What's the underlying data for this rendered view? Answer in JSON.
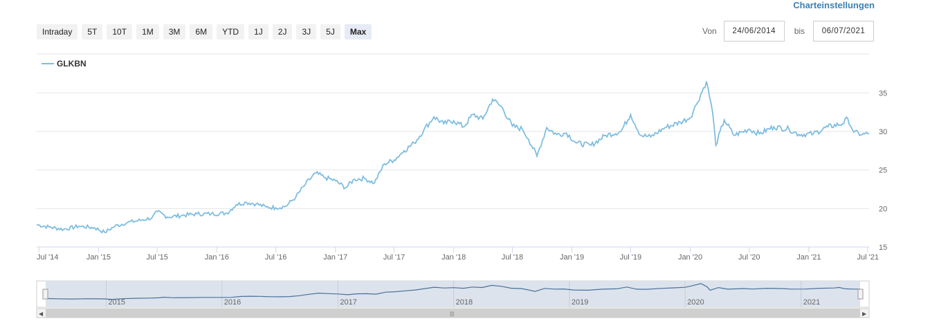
{
  "header": {
    "settings_label": "Charteinstellungen"
  },
  "range_buttons": [
    "Intraday",
    "5T",
    "10T",
    "1M",
    "3M",
    "6M",
    "YTD",
    "1J",
    "2J",
    "3J",
    "5J",
    "Max"
  ],
  "range_selected": "Max",
  "date_range": {
    "from_label": "Von",
    "from_value": "24/06/2014",
    "to_label": "bis",
    "to_value": "06/07/2021"
  },
  "colors": {
    "series": "#7ebde0",
    "navigator_line": "#4a6f9b",
    "navigator_bg": "#dce3ec",
    "grid": "#e6e6e6"
  },
  "chart_data": {
    "type": "line",
    "series": [
      {
        "name": "GLKBN",
        "points": [
          [
            "2014-06-24",
            17.9
          ],
          [
            "2014-08-01",
            17.6
          ],
          [
            "2014-09-15",
            17.3
          ],
          [
            "2014-11-01",
            17.7
          ],
          [
            "2014-12-20",
            17.5
          ],
          [
            "2015-01-20",
            16.9
          ],
          [
            "2015-02-20",
            17.7
          ],
          [
            "2015-04-01",
            18.2
          ],
          [
            "2015-05-15",
            18.5
          ],
          [
            "2015-06-15",
            18.8
          ],
          [
            "2015-07-01",
            19.6
          ],
          [
            "2015-08-01",
            18.9
          ],
          [
            "2015-09-15",
            19.1
          ],
          [
            "2015-11-01",
            19.3
          ],
          [
            "2015-12-15",
            19.3
          ],
          [
            "2016-02-01",
            19.4
          ],
          [
            "2016-03-01",
            20.5
          ],
          [
            "2016-04-01",
            20.8
          ],
          [
            "2016-05-01",
            20.6
          ],
          [
            "2016-06-01",
            20.2
          ],
          [
            "2016-07-01",
            20.1
          ],
          [
            "2016-08-01",
            20.3
          ],
          [
            "2016-09-01",
            21.5
          ],
          [
            "2016-10-01",
            23.2
          ],
          [
            "2016-11-01",
            24.6
          ],
          [
            "2016-12-01",
            24.0
          ],
          [
            "2017-01-01",
            23.6
          ],
          [
            "2017-02-01",
            22.7
          ],
          [
            "2017-03-01",
            23.8
          ],
          [
            "2017-04-01",
            23.9
          ],
          [
            "2017-05-01",
            23.3
          ],
          [
            "2017-06-01",
            25.8
          ],
          [
            "2017-07-01",
            26.3
          ],
          [
            "2017-08-01",
            27.5
          ],
          [
            "2017-09-01",
            28.5
          ],
          [
            "2017-10-01",
            30.2
          ],
          [
            "2017-11-01",
            31.9
          ],
          [
            "2017-12-01",
            31.0
          ],
          [
            "2018-01-01",
            31.4
          ],
          [
            "2018-02-01",
            30.6
          ],
          [
            "2018-03-01",
            32.2
          ],
          [
            "2018-04-01",
            31.6
          ],
          [
            "2018-05-01",
            34.2
          ],
          [
            "2018-06-01",
            33.0
          ],
          [
            "2018-07-01",
            30.7
          ],
          [
            "2018-08-01",
            30.3
          ],
          [
            "2018-08-20",
            29.0
          ],
          [
            "2018-09-15",
            26.8
          ],
          [
            "2018-10-15",
            30.5
          ],
          [
            "2018-11-15",
            29.6
          ],
          [
            "2018-12-15",
            29.8
          ],
          [
            "2019-01-15",
            28.5
          ],
          [
            "2019-03-01",
            28.2
          ],
          [
            "2019-04-15",
            29.5
          ],
          [
            "2019-06-01",
            30.0
          ],
          [
            "2019-07-01",
            32.2
          ],
          [
            "2019-08-01",
            29.5
          ],
          [
            "2019-09-01",
            29.3
          ],
          [
            "2019-10-15",
            30.5
          ],
          [
            "2019-12-01",
            31.2
          ],
          [
            "2020-01-01",
            31.8
          ],
          [
            "2020-01-20",
            33.5
          ],
          [
            "2020-02-20",
            36.5
          ],
          [
            "2020-03-10",
            32.5
          ],
          [
            "2020-03-20",
            28.2
          ],
          [
            "2020-04-15",
            31.5
          ],
          [
            "2020-05-15",
            29.5
          ],
          [
            "2020-07-01",
            30.3
          ],
          [
            "2020-08-01",
            29.7
          ],
          [
            "2020-09-15",
            30.6
          ],
          [
            "2020-11-01",
            30.3
          ],
          [
            "2020-12-01",
            29.6
          ],
          [
            "2021-01-15",
            29.7
          ],
          [
            "2021-03-01",
            30.6
          ],
          [
            "2021-04-15",
            31.0
          ],
          [
            "2021-05-01",
            31.7
          ],
          [
            "2021-05-20",
            29.9
          ],
          [
            "2021-06-15",
            29.6
          ],
          [
            "2021-07-06",
            29.7
          ]
        ]
      }
    ],
    "x_tick_labels": [
      "Jul '14",
      "Jan '15",
      "Jul '15",
      "Jan '16",
      "Jul '16",
      "Jan '17",
      "Jul '17",
      "Jan '18",
      "Jul '18",
      "Jan '19",
      "Jul '19",
      "Jan '20",
      "Jul '20",
      "Jan '21",
      "Jul '21"
    ],
    "y_ticks": [
      15,
      20,
      25,
      30,
      35
    ],
    "ylim": [
      15,
      37
    ],
    "xlim": [
      "2014-06-24",
      "2021-07-06"
    ],
    "navigator_tick_labels": [
      "2015",
      "2016",
      "2017",
      "2018",
      "2019",
      "2020",
      "2021"
    ],
    "grid": true,
    "y_axis_side": "right",
    "legend_position": "top-left"
  }
}
